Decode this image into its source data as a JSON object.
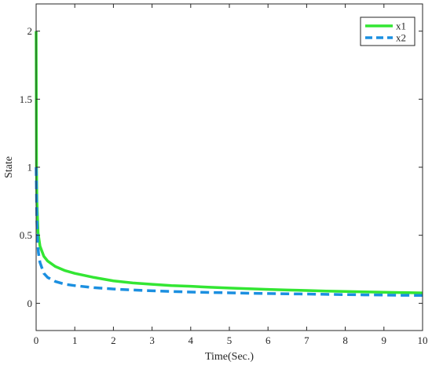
{
  "chart_data": {
    "type": "line",
    "title": "",
    "xlabel": "Time(Sec.)",
    "ylabel": "State",
    "xlim": [
      0,
      10
    ],
    "ylim": [
      -0.2,
      2.2
    ],
    "xticks": [
      0,
      1,
      2,
      3,
      4,
      5,
      6,
      7,
      8,
      9,
      10
    ],
    "xtick_labels": [
      "0",
      "1",
      "2",
      "3",
      "4",
      "5",
      "6",
      "7",
      "8",
      "9",
      "10"
    ],
    "yticks": [
      0,
      0.5,
      1,
      1.5,
      2
    ],
    "ytick_labels": [
      "0",
      "0.5",
      "1",
      "1.5",
      "2"
    ],
    "grid": false,
    "legend_position": "top-right",
    "series": [
      {
        "name": "x1",
        "color": "#33e633",
        "style": "solid",
        "x": [
          0,
          0.01,
          0.02,
          0.05,
          0.1,
          0.2,
          0.3,
          0.5,
          0.75,
          1,
          1.5,
          2,
          2.5,
          3,
          3.5,
          4,
          4.5,
          5,
          5.5,
          6,
          6.5,
          7,
          7.5,
          8,
          8.5,
          9,
          9.5,
          10
        ],
        "y": [
          2.0,
          1.0,
          0.75,
          0.52,
          0.42,
          0.345,
          0.31,
          0.27,
          0.24,
          0.22,
          0.19,
          0.165,
          0.15,
          0.14,
          0.13,
          0.125,
          0.118,
          0.112,
          0.107,
          0.102,
          0.098,
          0.094,
          0.09,
          0.087,
          0.084,
          0.081,
          0.079,
          0.076
        ]
      },
      {
        "name": "x2",
        "color": "#1b8fe0",
        "style": "dashed",
        "x": [
          0,
          0.01,
          0.02,
          0.04,
          0.06,
          0.1,
          0.2,
          0.3,
          0.5,
          0.75,
          1,
          1.5,
          2,
          2.5,
          3,
          3.5,
          4,
          4.5,
          5,
          5.5,
          6,
          6.5,
          7,
          7.5,
          8,
          8.5,
          9,
          9.5,
          10
        ],
        "y": [
          1.0,
          0.8,
          0.6,
          0.45,
          0.37,
          0.3,
          0.22,
          0.19,
          0.16,
          0.14,
          0.13,
          0.115,
          0.105,
          0.098,
          0.092,
          0.087,
          0.083,
          0.08,
          0.077,
          0.074,
          0.072,
          0.07,
          0.068,
          0.066,
          0.064,
          0.062,
          0.061,
          0.059,
          0.058
        ]
      }
    ]
  }
}
